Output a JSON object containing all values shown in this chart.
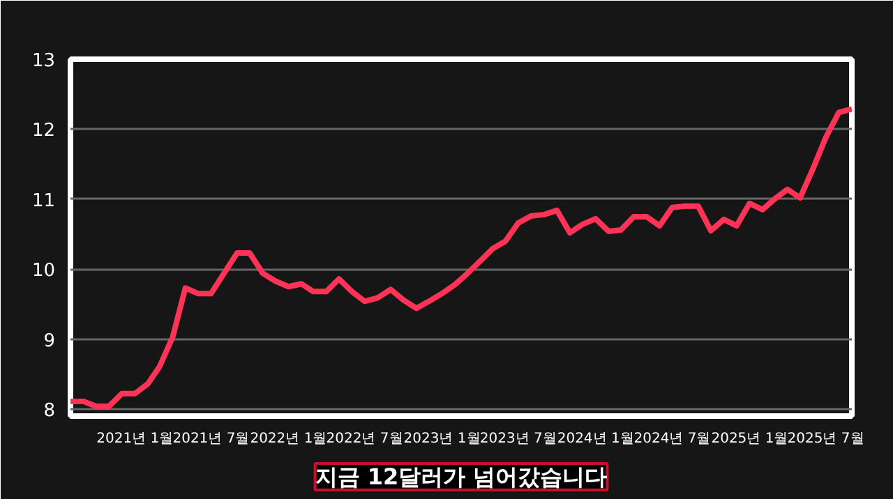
{
  "chart_data": {
    "type": "line",
    "x": [
      "2020-08",
      "2020-09",
      "2020-10",
      "2020-11",
      "2020-12",
      "2021-01",
      "2021-02",
      "2021-03",
      "2021-04",
      "2021-05",
      "2021-06",
      "2021-07",
      "2021-08",
      "2021-09",
      "2021-10",
      "2021-11",
      "2021-12",
      "2022-01",
      "2022-02",
      "2022-03",
      "2022-04",
      "2022-05",
      "2022-06",
      "2022-07",
      "2022-08",
      "2022-09",
      "2022-10",
      "2022-11",
      "2022-12",
      "2023-01",
      "2023-02",
      "2023-03",
      "2023-04",
      "2023-05",
      "2023-06",
      "2023-07",
      "2023-08",
      "2023-09",
      "2023-10",
      "2023-11",
      "2023-12",
      "2024-01",
      "2024-02",
      "2024-03",
      "2024-04",
      "2024-05",
      "2024-06",
      "2024-07",
      "2024-08",
      "2024-09",
      "2024-10",
      "2024-11",
      "2024-12",
      "2025-01",
      "2025-02",
      "2025-03",
      "2025-04",
      "2025-05",
      "2025-06",
      "2025-07",
      "2025-08",
      "2025-09"
    ],
    "series": [
      {
        "color": "#ff3355",
        "values": [
          8.11,
          8.11,
          8.04,
          8.04,
          8.22,
          8.22,
          8.36,
          8.61,
          9.03,
          9.73,
          9.65,
          9.65,
          9.94,
          10.23,
          10.23,
          9.94,
          9.83,
          9.75,
          9.79,
          9.68,
          9.68,
          9.86,
          9.68,
          9.54,
          9.59,
          9.71,
          9.56,
          9.44,
          9.54,
          9.65,
          9.78,
          9.93,
          10.11,
          10.29,
          10.4,
          10.66,
          10.76,
          10.78,
          10.84,
          10.52,
          10.64,
          10.72,
          10.54,
          10.56,
          10.75,
          10.75,
          10.62,
          10.88,
          10.9,
          10.9,
          10.55,
          10.71,
          10.62,
          10.94,
          10.85,
          11.0,
          11.14,
          11.02,
          11.44,
          11.88,
          12.24,
          12.29
        ]
      }
    ],
    "xlim": [
      "2020-08",
      "2025-09"
    ],
    "xticks": [
      {
        "value": "2021-01",
        "label": "2021년 1월"
      },
      {
        "value": "2021-07",
        "label": "2021년 7월"
      },
      {
        "value": "2022-01",
        "label": "2022년 1월"
      },
      {
        "value": "2022-07",
        "label": "2022년 7월"
      },
      {
        "value": "2023-01",
        "label": "2023년 1월"
      },
      {
        "value": "2023-07",
        "label": "2023년 7월"
      },
      {
        "value": "2024-01",
        "label": "2024년 1월"
      },
      {
        "value": "2024-07",
        "label": "2024년 7월"
      },
      {
        "value": "2025-01",
        "label": "2025년 1월"
      },
      {
        "value": "2025-07",
        "label": "2025년 7월"
      }
    ],
    "ylim": [
      7.9,
      13
    ],
    "yticks": [
      8,
      9,
      10,
      11,
      12,
      13
    ],
    "grid": "y",
    "line_style": "solid",
    "marker": "none",
    "annotations": [
      "지금 12달러가 넘어갔습니다"
    ]
  }
}
